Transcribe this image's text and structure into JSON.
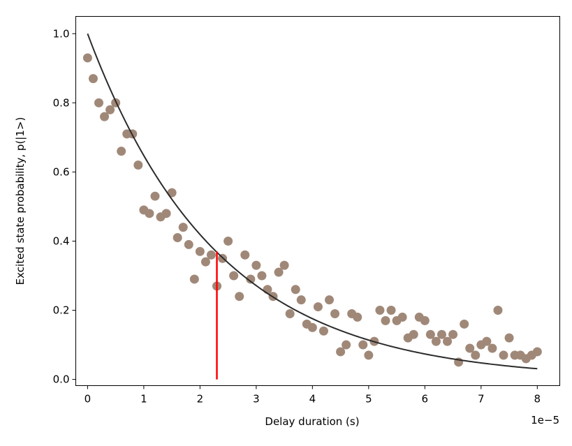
{
  "chart_data": {
    "type": "scatter",
    "title": "",
    "xlabel": "Delay duration (s)",
    "ylabel": "Excited state probability, p(|1>)",
    "x_offset_label": "1e−5",
    "x_scale_factor": 1e-05,
    "xlim": [
      -0.21,
      8.4
    ],
    "ylim": [
      -0.018,
      1.05
    ],
    "xticks": [
      0,
      1,
      2,
      3,
      4,
      5,
      6,
      7,
      8
    ],
    "xtick_labels": [
      "0",
      "1",
      "2",
      "3",
      "4",
      "5",
      "6",
      "7",
      "8"
    ],
    "yticks": [
      0.0,
      0.2,
      0.4,
      0.6,
      0.8,
      1.0
    ],
    "ytick_labels": [
      "0.0",
      "0.2",
      "0.4",
      "0.6",
      "0.8",
      "1.0"
    ],
    "grid": false,
    "series": [
      {
        "type": "scatter",
        "color": "#a08878",
        "x_step": 0.1,
        "x_start": 0,
        "y": [
          0.93,
          0.87,
          0.8,
          0.76,
          0.78,
          0.8,
          0.66,
          0.71,
          0.71,
          0.62,
          0.49,
          0.48,
          0.53,
          0.47,
          0.48,
          0.54,
          0.41,
          0.44,
          0.39,
          0.29,
          0.37,
          0.34,
          0.36,
          0.27,
          0.35,
          0.4,
          0.3,
          0.24,
          0.36,
          0.29,
          0.33,
          0.3,
          0.26,
          0.24,
          0.31,
          0.33,
          0.19,
          0.26,
          0.23,
          0.16,
          0.15,
          0.21,
          0.14,
          0.23,
          0.19,
          0.08,
          0.1,
          0.19,
          0.18,
          0.1,
          0.07,
          0.11,
          0.2,
          0.17,
          0.2,
          0.17,
          0.18,
          0.12,
          0.13,
          0.18,
          0.17,
          0.13,
          0.11,
          0.13,
          0.11,
          0.13,
          0.05,
          0.16,
          0.09,
          0.07,
          0.1,
          0.11,
          0.09,
          0.2,
          0.07,
          0.12,
          0.07,
          0.07,
          0.06,
          0.07,
          0.08
        ]
      },
      {
        "type": "line",
        "color": "#2b2b2b",
        "function": "exp(-t/T1)",
        "T1": 2.3,
        "x_range": [
          0,
          8
        ]
      },
      {
        "type": "vline",
        "color": "#ff0000",
        "x": 2.3,
        "y_range": [
          0,
          0.37
        ]
      }
    ]
  }
}
